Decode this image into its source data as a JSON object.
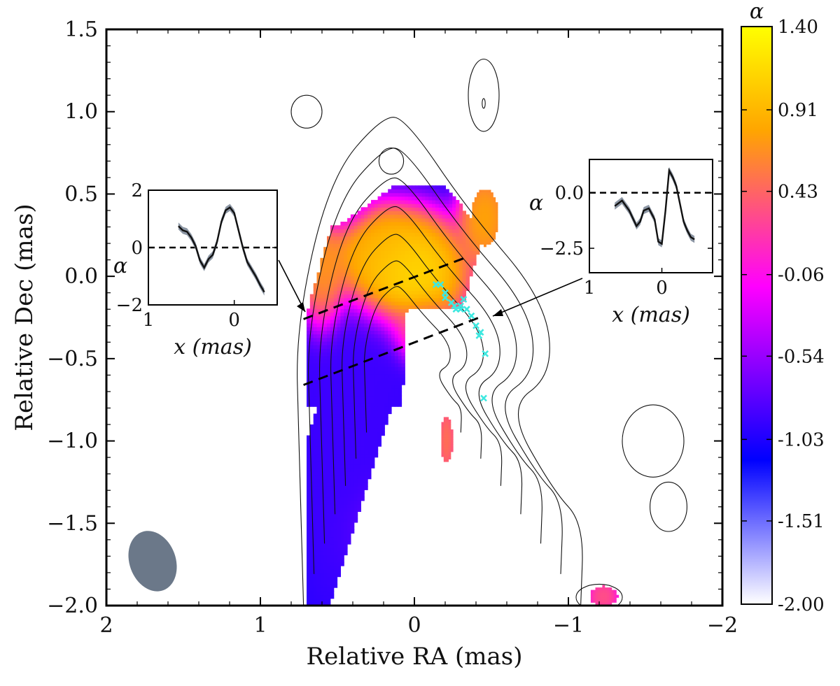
{
  "chart_data": {
    "type": "heatmap",
    "title": "",
    "xlabel": "Relative RA (mas)",
    "ylabel": "Relative Dec (mas)",
    "xlim": [
      2,
      -2
    ],
    "ylim": [
      -2.0,
      1.5
    ],
    "x_ticks": [
      2,
      1,
      0,
      -1,
      -2
    ],
    "x_tick_labels": [
      "2",
      "1",
      "0",
      "−1",
      "−2"
    ],
    "y_ticks": [
      1.5,
      1.0,
      0.5,
      0.0,
      -0.5,
      -1.0,
      -1.5,
      -2.0
    ],
    "y_tick_labels": [
      "1.5",
      "1.0",
      "0.5",
      "0.0",
      "−0.5",
      "−1.0",
      "−1.5",
      "−2.0"
    ],
    "colorbar": {
      "label": "α",
      "range": [
        -2.0,
        1.4
      ],
      "tick_values": [
        1.4,
        0.91,
        0.43,
        -0.06,
        -0.54,
        -1.03,
        -1.51,
        -2.0
      ],
      "tick_labels": [
        "1.40",
        "0.91",
        "0.43",
        "-0.06",
        "-0.54",
        "-1.03",
        "-1.51",
        "-2.00"
      ],
      "colors": [
        "#ffffff",
        "#0000ff",
        "#ff00ff",
        "#ffa500",
        "#ffff00"
      ]
    },
    "spectral_index_blobs": [
      {
        "x": 0.07,
        "y": 0.02,
        "sx": 0.2,
        "sy": 0.17,
        "value": 1.3
      },
      {
        "x": 0.6,
        "y": 0.0,
        "sx": 0.07,
        "sy": 0.18,
        "value": 0.8
      },
      {
        "x": 0.25,
        "y": 0.15,
        "sx": 0.15,
        "sy": 0.12,
        "value": 0.9
      },
      {
        "x": -0.05,
        "y": -0.35,
        "sx": 0.1,
        "sy": 0.1,
        "value": 0.4
      },
      {
        "x": -0.45,
        "y": 0.35,
        "sx": 0.08,
        "sy": 0.14,
        "value": 0.9
      },
      {
        "x": -0.2,
        "y": -1.0,
        "sx": 0.03,
        "sy": 0.12,
        "value": 0.6
      },
      {
        "x": -1.22,
        "y": -1.95,
        "sx": 0.05,
        "sy": 0.05,
        "value": 0.4
      },
      {
        "x": 0.4,
        "y": -0.65,
        "sx": 0.2,
        "sy": 0.25,
        "value": -0.9
      },
      {
        "x": 0.45,
        "y": -1.3,
        "sx": 0.15,
        "sy": 0.35,
        "value": -0.9
      },
      {
        "x": 0.05,
        "y": -1.55,
        "sx": 0.18,
        "sy": 0.15,
        "value": -0.4
      },
      {
        "x": -0.05,
        "y": -1.85,
        "sx": 0.2,
        "sy": 0.12,
        "value": -1.0
      },
      {
        "x": 0.5,
        "y": 0.45,
        "sx": 0.1,
        "sy": 0.1,
        "value": -0.3
      }
    ],
    "spectral_index_bounds": {
      "ra_min": -0.62,
      "ra_max": 0.7,
      "dec_min": -2.0,
      "dec_max": 0.6
    },
    "contours": [
      {
        "x": 0.72,
        "y": -2.0
      },
      {
        "x": 0.75,
        "y": -1.0
      },
      {
        "x": 0.77,
        "y": -0.3
      },
      {
        "x": 0.55,
        "y": 0.6
      },
      {
        "x": 0.2,
        "y": 0.98
      },
      {
        "x": 0.05,
        "y": 0.95
      },
      {
        "x": -0.35,
        "y": 0.4
      },
      {
        "x": -0.85,
        "y": -0.15
      },
      {
        "x": -0.9,
        "y": -0.6
      },
      {
        "x": -0.6,
        "y": -0.8
      },
      {
        "x": -0.9,
        "y": -1.3
      },
      {
        "x": -1.1,
        "y": -1.5
      },
      {
        "x": -1.08,
        "y": -2.0
      }
    ],
    "contour_levels": 7,
    "cross_cut_lines": [
      {
        "style": "dashed",
        "x": [
          0.72,
          -0.35
        ],
        "y": [
          -0.26,
          0.12
        ]
      },
      {
        "style": "dashed",
        "x": [
          0.72,
          -0.45
        ],
        "y": [
          -0.66,
          -0.24
        ]
      }
    ],
    "markers": {
      "color": "#3ee8e0",
      "symbol": "x",
      "points": [
        {
          "x": -0.17,
          "y": -0.05
        },
        {
          "x": -0.14,
          "y": -0.05
        },
        {
          "x": -0.2,
          "y": -0.1
        },
        {
          "x": -0.2,
          "y": -0.13
        },
        {
          "x": -0.24,
          "y": -0.16
        },
        {
          "x": -0.26,
          "y": -0.18
        },
        {
          "x": -0.3,
          "y": -0.18
        },
        {
          "x": -0.3,
          "y": -0.2
        },
        {
          "x": -0.27,
          "y": -0.2
        },
        {
          "x": -0.32,
          "y": -0.14
        },
        {
          "x": -0.34,
          "y": -0.2
        },
        {
          "x": -0.37,
          "y": -0.24
        },
        {
          "x": -0.4,
          "y": -0.3
        },
        {
          "x": -0.43,
          "y": -0.34
        },
        {
          "x": -0.42,
          "y": -0.36
        },
        {
          "x": -0.46,
          "y": -0.47
        },
        {
          "x": -0.45,
          "y": -0.74
        }
      ]
    },
    "beam": {
      "x": 1.7,
      "y": -1.73,
      "major_mas": 0.36,
      "minor_mas": 0.15,
      "pa_deg": -20,
      "color": "#6b7889"
    },
    "insets": [
      {
        "position": "left",
        "xlabel": "x (mas)",
        "ylabel": "α",
        "xlim": [
          1,
          -0.5
        ],
        "ylim": [
          -2.0,
          2.0
        ],
        "x_ticks": [
          1,
          0
        ],
        "x_tick_labels": [
          "1",
          "0"
        ],
        "y_ticks": [
          2,
          0,
          -2
        ],
        "y_tick_labels": [
          "2",
          "0",
          "−2"
        ],
        "profile": [
          [
            0.65,
            0.75
          ],
          [
            0.6,
            0.6
          ],
          [
            0.55,
            0.55
          ],
          [
            0.5,
            0.35
          ],
          [
            0.45,
            0.05
          ],
          [
            0.4,
            -0.45
          ],
          [
            0.35,
            -0.7
          ],
          [
            0.3,
            -0.4
          ],
          [
            0.25,
            -0.25
          ],
          [
            0.2,
            0.2
          ],
          [
            0.15,
            0.9
          ],
          [
            0.1,
            1.3
          ],
          [
            0.05,
            1.4
          ],
          [
            0.0,
            1.2
          ],
          [
            -0.05,
            0.6
          ],
          [
            -0.1,
            0.0
          ],
          [
            -0.15,
            -0.5
          ],
          [
            -0.2,
            -0.75
          ],
          [
            -0.25,
            -1.0
          ],
          [
            -0.3,
            -1.3
          ],
          [
            -0.35,
            -1.55
          ]
        ]
      },
      {
        "position": "right",
        "xlabel": "x (mas)",
        "ylabel": "α",
        "xlim": [
          1,
          -0.7
        ],
        "ylim": [
          -3.6,
          1.5
        ],
        "x_ticks": [
          1,
          0
        ],
        "x_tick_labels": [
          "1",
          "0"
        ],
        "y_ticks": [
          0.0,
          -2.5
        ],
        "y_tick_labels": [
          "0.0",
          "−2.5"
        ],
        "profile": [
          [
            0.65,
            -0.6
          ],
          [
            0.55,
            -0.35
          ],
          [
            0.45,
            -0.8
          ],
          [
            0.35,
            -1.5
          ],
          [
            0.3,
            -1.3
          ],
          [
            0.25,
            -0.8
          ],
          [
            0.18,
            -0.7
          ],
          [
            0.1,
            -1.2
          ],
          [
            0.05,
            -2.2
          ],
          [
            0.0,
            -2.3
          ],
          [
            -0.05,
            -0.8
          ],
          [
            -0.1,
            1.0
          ],
          [
            -0.15,
            0.7
          ],
          [
            -0.2,
            0.3
          ],
          [
            -0.25,
            -0.5
          ],
          [
            -0.3,
            -1.3
          ],
          [
            -0.35,
            -1.7
          ],
          [
            -0.4,
            -2.0
          ],
          [
            -0.45,
            -2.1
          ]
        ]
      }
    ]
  }
}
